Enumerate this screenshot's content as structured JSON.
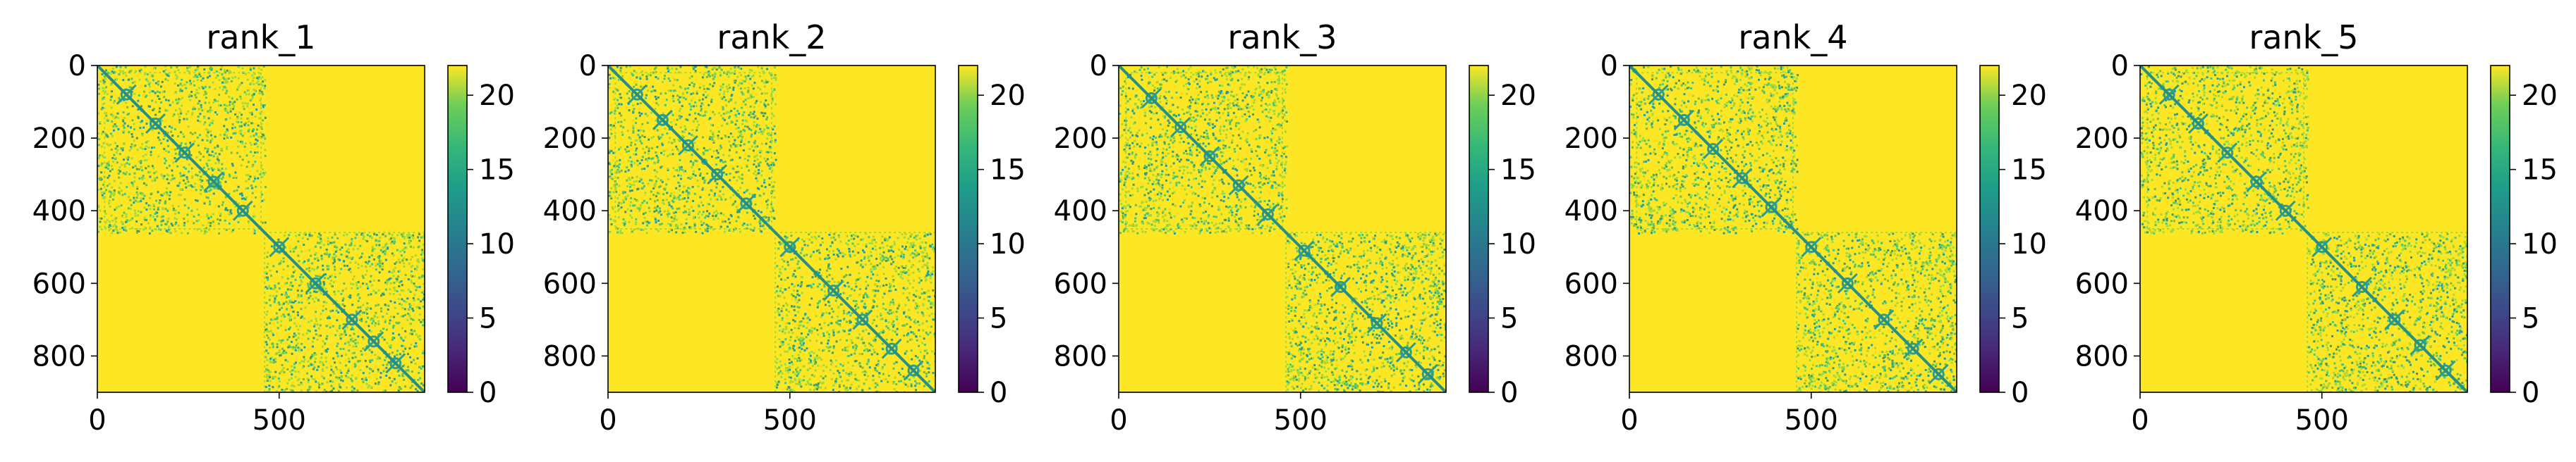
{
  "figure": {
    "background": "#ffffff"
  },
  "chart_data": [
    {
      "type": "heatmap",
      "title": "rank_1",
      "matrix_size": 900,
      "x_ticks": [
        0,
        500
      ],
      "y_ticks": [
        0,
        200,
        400,
        600,
        800
      ],
      "colorbar": {
        "min": 0,
        "max": 22,
        "ticks": [
          0,
          5,
          10,
          15,
          20
        ]
      },
      "colormap": "viridis",
      "diagonal_blocks": [
        [
          0,
          460
        ],
        [
          460,
          900
        ]
      ],
      "hotspots": [
        [
          80,
          80
        ],
        [
          160,
          160
        ],
        [
          240,
          240
        ],
        [
          320,
          320
        ],
        [
          400,
          400
        ],
        [
          500,
          500
        ],
        [
          600,
          600
        ],
        [
          700,
          700
        ],
        [
          760,
          760
        ],
        [
          820,
          820
        ]
      ],
      "stripe_frames": [
        [
          20,
          450
        ],
        [
          460,
          900
        ]
      ]
    },
    {
      "type": "heatmap",
      "title": "rank_2",
      "matrix_size": 900,
      "x_ticks": [
        0,
        500
      ],
      "y_ticks": [
        0,
        200,
        400,
        600,
        800
      ],
      "colorbar": {
        "min": 0,
        "max": 22,
        "ticks": [
          0,
          5,
          10,
          15,
          20
        ]
      },
      "colormap": "viridis",
      "diagonal_blocks": [
        [
          0,
          460
        ],
        [
          460,
          900
        ]
      ],
      "hotspots": [
        [
          80,
          80
        ],
        [
          150,
          150
        ],
        [
          220,
          220
        ],
        [
          300,
          300
        ],
        [
          380,
          380
        ],
        [
          500,
          500
        ],
        [
          620,
          620
        ],
        [
          700,
          700
        ],
        [
          780,
          780
        ],
        [
          840,
          840
        ]
      ],
      "stripe_frames": [
        [
          20,
          450
        ],
        [
          460,
          900
        ]
      ]
    },
    {
      "type": "heatmap",
      "title": "rank_3",
      "matrix_size": 900,
      "x_ticks": [
        0,
        500
      ],
      "y_ticks": [
        0,
        200,
        400,
        600,
        800
      ],
      "colorbar": {
        "min": 0,
        "max": 22,
        "ticks": [
          0,
          5,
          10,
          15,
          20
        ]
      },
      "colormap": "viridis",
      "diagonal_blocks": [
        [
          0,
          460
        ],
        [
          460,
          900
        ]
      ],
      "hotspots": [
        [
          90,
          90
        ],
        [
          170,
          170
        ],
        [
          250,
          250
        ],
        [
          330,
          330
        ],
        [
          410,
          410
        ],
        [
          510,
          510
        ],
        [
          610,
          610
        ],
        [
          710,
          710
        ],
        [
          790,
          790
        ],
        [
          850,
          850
        ]
      ],
      "stripe_frames": [
        [
          20,
          450
        ],
        [
          460,
          900
        ]
      ]
    },
    {
      "type": "heatmap",
      "title": "rank_4",
      "matrix_size": 900,
      "x_ticks": [
        0,
        500
      ],
      "y_ticks": [
        0,
        200,
        400,
        600,
        800
      ],
      "colorbar": {
        "min": 0,
        "max": 22,
        "ticks": [
          0,
          5,
          10,
          15,
          20
        ]
      },
      "colormap": "viridis",
      "diagonal_blocks": [
        [
          0,
          460
        ],
        [
          460,
          900
        ]
      ],
      "hotspots": [
        [
          80,
          80
        ],
        [
          150,
          150
        ],
        [
          230,
          230
        ],
        [
          310,
          310
        ],
        [
          390,
          390
        ],
        [
          500,
          500
        ],
        [
          600,
          600
        ],
        [
          700,
          700
        ],
        [
          780,
          780
        ],
        [
          850,
          850
        ]
      ],
      "stripe_frames": [
        [
          20,
          450
        ],
        [
          460,
          900
        ]
      ]
    },
    {
      "type": "heatmap",
      "title": "rank_5",
      "matrix_size": 900,
      "x_ticks": [
        0,
        500
      ],
      "y_ticks": [
        0,
        200,
        400,
        600,
        800
      ],
      "colorbar": {
        "min": 0,
        "max": 22,
        "ticks": [
          0,
          5,
          10,
          15,
          20
        ]
      },
      "colormap": "viridis",
      "diagonal_blocks": [
        [
          0,
          460
        ],
        [
          460,
          900
        ]
      ],
      "hotspots": [
        [
          80,
          80
        ],
        [
          160,
          160
        ],
        [
          240,
          240
        ],
        [
          320,
          320
        ],
        [
          400,
          400
        ],
        [
          500,
          500
        ],
        [
          610,
          610
        ],
        [
          700,
          700
        ],
        [
          770,
          770
        ],
        [
          840,
          840
        ]
      ],
      "stripe_frames": [
        [
          20,
          450
        ],
        [
          460,
          900
        ]
      ]
    }
  ]
}
